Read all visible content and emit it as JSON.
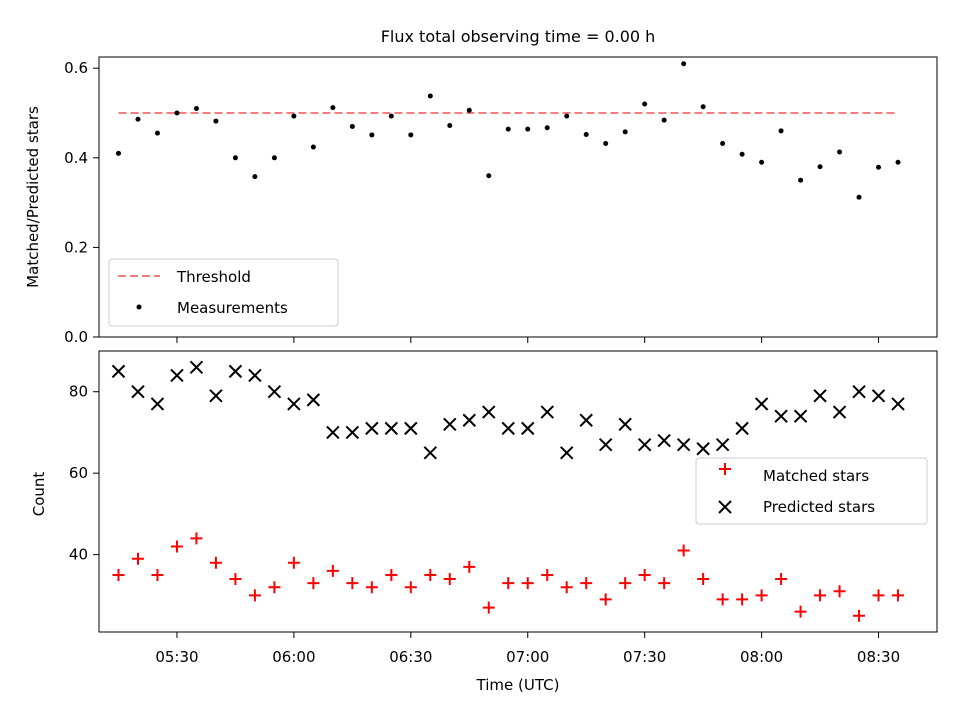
{
  "chart_data": [
    {
      "type": "scatter",
      "title": "Flux total observing time = 0.00 h",
      "xlabel": "",
      "ylabel": "Matched/Predicted stars",
      "ylim": [
        0,
        0.625
      ],
      "yticks": [
        0.0,
        0.2,
        0.4,
        0.6
      ],
      "ytick_labels": [
        "0.0",
        "0.2",
        "0.4",
        "0.6"
      ],
      "x": [
        "05:15",
        "05:20",
        "05:25",
        "05:30",
        "05:35",
        "05:40",
        "05:45",
        "05:50",
        "05:55",
        "06:00",
        "06:05",
        "06:10",
        "06:15",
        "06:20",
        "06:25",
        "06:30",
        "06:35",
        "06:40",
        "06:45",
        "06:50",
        "06:55",
        "07:00",
        "07:05",
        "07:10",
        "07:15",
        "07:20",
        "07:25",
        "07:30",
        "07:35",
        "07:40",
        "07:45",
        "07:50",
        "07:55",
        "08:00",
        "08:05",
        "08:10",
        "08:15",
        "08:20",
        "08:25",
        "08:30",
        "08:35"
      ],
      "series": [
        {
          "name": "Threshold",
          "kind": "line",
          "style": "dashed",
          "color": "#f08080",
          "x": [
            "05:15",
            "08:35"
          ],
          "values": [
            0.5,
            0.5
          ]
        },
        {
          "name": "Measurements",
          "kind": "scatter",
          "color": "#000000",
          "values": [
            0.41,
            0.486,
            0.455,
            0.5,
            0.51,
            0.482,
            0.4,
            0.358,
            0.4,
            0.493,
            0.424,
            0.512,
            0.47,
            0.451,
            0.493,
            0.451,
            0.538,
            0.472,
            0.506,
            0.36,
            0.464,
            0.464,
            0.467,
            0.493,
            0.452,
            0.432,
            0.458,
            0.52,
            0.484,
            0.61,
            0.514,
            0.432,
            0.408,
            0.39,
            0.46,
            0.35,
            0.38,
            0.413,
            0.312,
            0.379,
            0.39
          ]
        }
      ],
      "legend": {
        "placement": "lower-left"
      },
      "grid": false
    },
    {
      "type": "scatter",
      "title": "",
      "xlabel": "Time (UTC)",
      "ylabel": "Count",
      "ylim": [
        21,
        90
      ],
      "yticks": [
        40,
        60,
        80
      ],
      "ytick_labels": [
        "40",
        "60",
        "80"
      ],
      "xlim": [
        "05:10",
        "08:45"
      ],
      "xticks": [
        "05:30",
        "06:00",
        "06:30",
        "07:00",
        "07:30",
        "08:00",
        "08:30"
      ],
      "xtick_labels": [
        "05:30",
        "06:00",
        "06:30",
        "07:00",
        "07:30",
        "08:00",
        "08:30"
      ],
      "x": [
        "05:15",
        "05:20",
        "05:25",
        "05:30",
        "05:35",
        "05:40",
        "05:45",
        "05:50",
        "05:55",
        "06:00",
        "06:05",
        "06:10",
        "06:15",
        "06:20",
        "06:25",
        "06:30",
        "06:35",
        "06:40",
        "06:45",
        "06:50",
        "06:55",
        "07:00",
        "07:05",
        "07:10",
        "07:15",
        "07:20",
        "07:25",
        "07:30",
        "07:35",
        "07:40",
        "07:45",
        "07:50",
        "07:55",
        "08:00",
        "08:05",
        "08:10",
        "08:15",
        "08:20",
        "08:25",
        "08:30",
        "08:35"
      ],
      "series": [
        {
          "name": "Matched stars",
          "marker": "plus",
          "color": "#ff0000",
          "values": [
            35,
            39,
            35,
            42,
            44,
            38,
            34,
            30,
            32,
            38,
            33,
            36,
            33,
            32,
            35,
            32,
            35,
            34,
            37,
            27,
            33,
            33,
            35,
            32,
            33,
            29,
            33,
            35,
            33,
            41,
            34,
            29,
            29,
            30,
            34,
            26,
            30,
            31,
            25,
            30,
            30
          ]
        },
        {
          "name": "Predicted stars",
          "marker": "x",
          "color": "#000000",
          "values": [
            85,
            80,
            77,
            84,
            86,
            79,
            85,
            84,
            80,
            77,
            78,
            70,
            70,
            71,
            71,
            71,
            65,
            72,
            73,
            75,
            71,
            71,
            75,
            65,
            73,
            67,
            72,
            67,
            68,
            67,
            66,
            67,
            71,
            77,
            74,
            74,
            79,
            75,
            80,
            79,
            77
          ]
        }
      ],
      "legend": {
        "placement": "center-right"
      },
      "grid": false
    }
  ]
}
